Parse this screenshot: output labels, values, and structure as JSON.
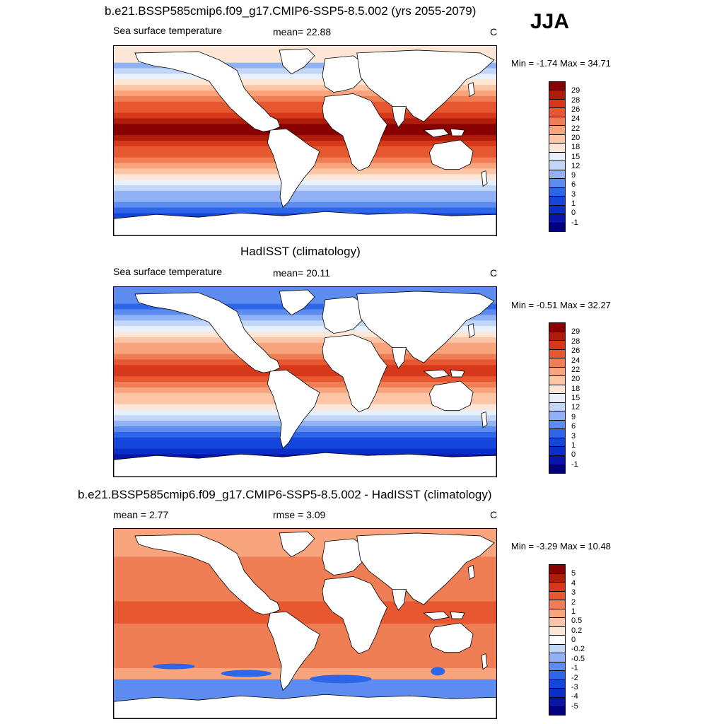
{
  "season": "JJA",
  "colors": {
    "land": "#ffffff",
    "coast": "#000000",
    "sst_scale": [
      "#000080",
      "#0a14a8",
      "#0c2ec8",
      "#1446dc",
      "#2e66ea",
      "#5c8cf0",
      "#90b2f4",
      "#c2d6f8",
      "#e8f0fc",
      "#fde6d6",
      "#fcc6a6",
      "#f8a47c",
      "#f07e54",
      "#e85830",
      "#d8381a",
      "#b01c0a",
      "#880000"
    ],
    "diff_scale": [
      "#000080",
      "#0a14a8",
      "#0c2ec8",
      "#1446dc",
      "#2e66ea",
      "#5c8cf0",
      "#90b2f4",
      "#c2d6f8",
      "#ffffff",
      "#fde6d6",
      "#fcc6a6",
      "#f8a47c",
      "#f07e54",
      "#e85830",
      "#d8381a",
      "#b01c0a",
      "#880000"
    ]
  },
  "panels": [
    {
      "title": "b.e21.BSSP585cmip6.f09_g17.CMIP6-SSP5-8.5.002 (yrs 2055-2079)",
      "left_label": "Sea surface temperature",
      "mean_label": "mean=  22.88",
      "units": "C",
      "minmax": "Min =  -1.74 Max =  34.71",
      "colorbar_labels": [
        "29",
        "28",
        "26",
        "24",
        "22",
        "20",
        "18",
        "15",
        "12",
        "9",
        "6",
        "3",
        "1",
        "0",
        "-1"
      ]
    },
    {
      "title": "HadISST (climatology)",
      "left_label": "Sea surface temperature",
      "mean_label": "mean=  20.11",
      "units": "C",
      "minmax": "Min =  -0.51 Max =  32.27",
      "colorbar_labels": [
        "29",
        "28",
        "26",
        "24",
        "22",
        "20",
        "18",
        "15",
        "12",
        "9",
        "6",
        "3",
        "1",
        "0",
        "-1"
      ]
    },
    {
      "title": "b.e21.BSSP585cmip6.f09_g17.CMIP6-SSP5-8.5.002 - HadISST (climatology)",
      "left_label": "mean =   2.77",
      "mean_label": "rmse =   3.09",
      "units": "C",
      "minmax": "Min =  -3.29 Max =  10.48",
      "colorbar_labels": [
        "5",
        "4",
        "3",
        "2",
        "1",
        "0.5",
        "0.2",
        "0",
        "-0.2",
        "-0.5",
        "-1",
        "-2",
        "-3",
        "-4",
        "-5"
      ]
    }
  ]
}
